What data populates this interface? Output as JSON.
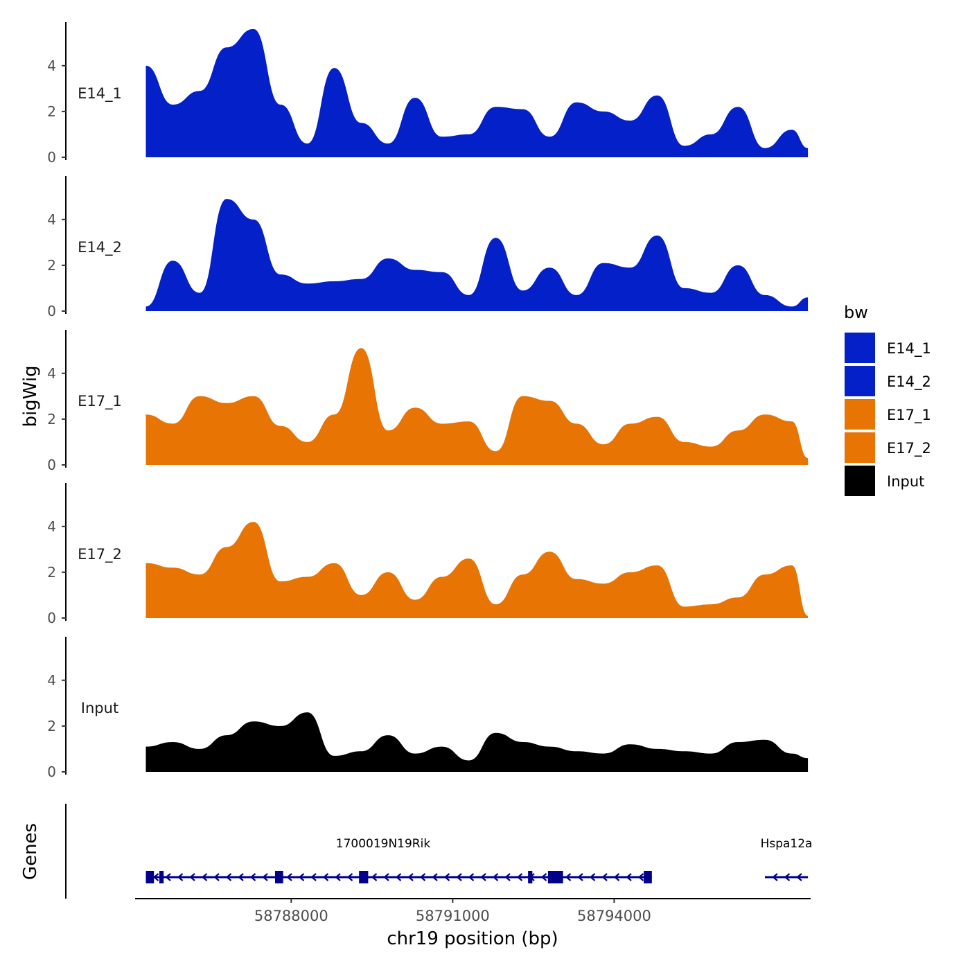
{
  "chart_data": {
    "type": "area",
    "y_axis_title": "bigWig",
    "genes_axis_title": "Genes",
    "x_axis_title": "chr19 position (bp)",
    "xlim": [
      58785100,
      58797650
    ],
    "x_ticks": [
      58788000,
      58791000,
      58794000
    ],
    "x_tick_labels": [
      "58788000",
      "58791000",
      "58794000"
    ],
    "ylim": [
      0,
      5.9
    ],
    "y_ticks": [
      0,
      2,
      4
    ],
    "y_tick_labels": [
      "0",
      "2",
      "4"
    ],
    "legend": {
      "title": "bw",
      "entries": [
        {
          "label": "E14_1",
          "color": "#0320C9"
        },
        {
          "label": "E14_2",
          "color": "#0320C9"
        },
        {
          "label": "E17_1",
          "color": "#E87404"
        },
        {
          "label": "E17_2",
          "color": "#E87404"
        },
        {
          "label": "Input",
          "color": "#000000"
        }
      ]
    },
    "series": [
      {
        "name": "E14_1",
        "color": "#0320C9",
        "x": [
          58785300,
          58785800,
          58786300,
          58786800,
          58787300,
          58787800,
          58788300,
          58788800,
          58789300,
          58789800,
          58790300,
          58790800,
          58791300,
          58791800,
          58792300,
          58792800,
          58793300,
          58793800,
          58794300,
          58794800,
          58795300,
          58795800,
          58796300,
          58796800,
          58797300,
          58797600
        ],
        "values": [
          4.0,
          2.3,
          2.9,
          4.8,
          5.6,
          2.3,
          0.6,
          3.9,
          1.5,
          0.6,
          2.6,
          0.9,
          1.0,
          2.2,
          2.1,
          0.9,
          2.4,
          2.0,
          1.6,
          2.7,
          0.5,
          1.0,
          2.2,
          0.4,
          1.2,
          0.4
        ]
      },
      {
        "name": "E14_2",
        "color": "#0320C9",
        "x": [
          58785300,
          58785800,
          58786300,
          58786800,
          58787300,
          58787800,
          58788300,
          58788800,
          58789300,
          58789800,
          58790300,
          58790800,
          58791300,
          58791800,
          58792300,
          58792800,
          58793300,
          58793800,
          58794300,
          58794800,
          58795300,
          58795800,
          58796300,
          58796800,
          58797300,
          58797600
        ],
        "values": [
          0.2,
          2.2,
          0.8,
          4.9,
          4.0,
          1.6,
          1.2,
          1.3,
          1.4,
          2.3,
          1.8,
          1.7,
          0.7,
          3.2,
          0.9,
          1.9,
          0.7,
          2.1,
          1.9,
          3.3,
          1.0,
          0.8,
          2.0,
          0.7,
          0.2,
          0.6
        ]
      },
      {
        "name": "E17_1",
        "color": "#E87404",
        "x": [
          58785300,
          58785800,
          58786300,
          58786800,
          58787300,
          58787800,
          58788300,
          58788800,
          58789300,
          58789800,
          58790300,
          58790800,
          58791300,
          58791800,
          58792300,
          58792800,
          58793300,
          58793800,
          58794300,
          58794800,
          58795300,
          58795800,
          58796300,
          58796800,
          58797300,
          58797600
        ],
        "values": [
          2.2,
          1.8,
          3.0,
          2.7,
          3.0,
          1.7,
          1.0,
          2.2,
          5.1,
          1.5,
          2.5,
          1.8,
          1.9,
          0.6,
          3.0,
          2.8,
          1.8,
          0.9,
          1.8,
          2.1,
          1.0,
          0.8,
          1.5,
          2.2,
          1.9,
          0.3
        ]
      },
      {
        "name": "E17_2",
        "color": "#E87404",
        "x": [
          58785300,
          58785800,
          58786300,
          58786800,
          58787300,
          58787800,
          58788300,
          58788800,
          58789300,
          58789800,
          58790300,
          58790800,
          58791300,
          58791800,
          58792300,
          58792800,
          58793300,
          58793800,
          58794300,
          58794800,
          58795300,
          58795800,
          58796300,
          58796800,
          58797300,
          58797600
        ],
        "values": [
          2.4,
          2.2,
          1.9,
          3.1,
          4.2,
          1.6,
          1.8,
          2.4,
          1.0,
          2.0,
          0.8,
          1.8,
          2.6,
          0.6,
          1.9,
          2.9,
          1.7,
          1.5,
          2.0,
          2.3,
          0.5,
          0.6,
          0.9,
          1.9,
          2.3,
          0.1
        ]
      },
      {
        "name": "Input",
        "color": "#000000",
        "x": [
          58785300,
          58785800,
          58786300,
          58786800,
          58787300,
          58787800,
          58788300,
          58788800,
          58789300,
          58789800,
          58790300,
          58790800,
          58791300,
          58791800,
          58792300,
          58792800,
          58793300,
          58793800,
          58794300,
          58794800,
          58795300,
          58795800,
          58796300,
          58796800,
          58797300,
          58797600
        ],
        "values": [
          1.1,
          1.3,
          1.0,
          1.6,
          2.2,
          2.0,
          2.6,
          0.7,
          0.9,
          1.6,
          0.8,
          1.1,
          0.5,
          1.7,
          1.3,
          1.1,
          0.9,
          0.8,
          1.2,
          1.0,
          0.9,
          0.8,
          1.3,
          1.4,
          0.8,
          0.6
        ]
      }
    ],
    "genes": [
      {
        "name": "1700019N19Rik",
        "start": 58785300,
        "end": 58794700,
        "strand": "-",
        "exons": [
          [
            58785300,
            58785450
          ],
          [
            58785550,
            58785630
          ],
          [
            58787700,
            58787850
          ],
          [
            58789260,
            58789430
          ],
          [
            58792400,
            58792480
          ],
          [
            58792770,
            58793050
          ],
          [
            58794550,
            58794700
          ]
        ]
      },
      {
        "name": "Hspa12a",
        "start": 58796800,
        "end": 58797600,
        "strand": "-",
        "exons": []
      }
    ]
  }
}
